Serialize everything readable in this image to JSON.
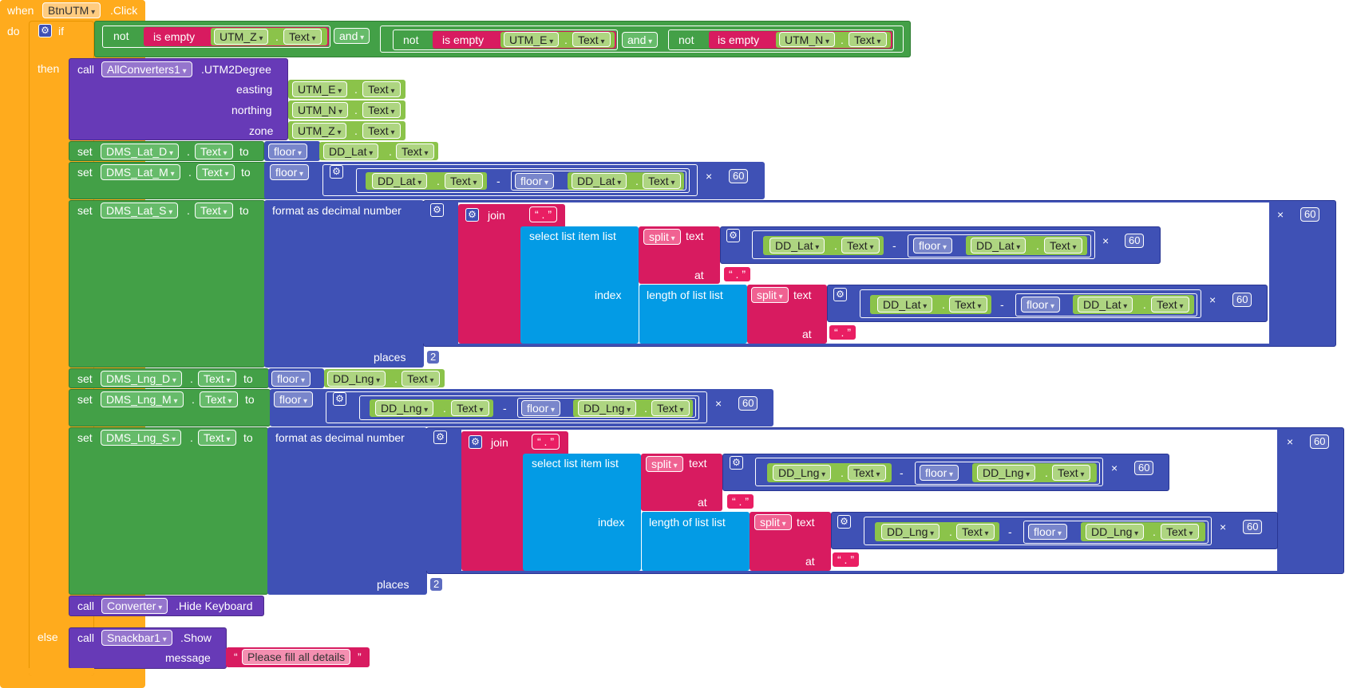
{
  "event": {
    "when": "when",
    "component": "BtnUTM",
    "event_name": ".Click",
    "do": "do"
  },
  "if_block": {
    "if": "if",
    "then": "then",
    "else": "else",
    "not": "not",
    "is_empty": "is empty",
    "and": "and",
    "utm_z": "UTM_Z",
    "utm_e": "UTM_E",
    "utm_n": "UTM_N",
    "text": "Text",
    "dot": "."
  },
  "call_converter": {
    "call": "call",
    "component": "AllConverters1",
    "method": ".UTM2Degree",
    "easting": "easting",
    "northing": "northing",
    "zone": "zone"
  },
  "set_blocks": {
    "set": "set",
    "to": "to",
    "floor": "floor",
    "minus": "-",
    "times": "×",
    "sixty": "60",
    "lat_d": "DMS_Lat_D",
    "lat_m": "DMS_Lat_M",
    "lat_s": "DMS_Lat_S",
    "lng_d": "DMS_Lng_D",
    "lng_m": "DMS_Lng_M",
    "lng_s": "DMS_Lng_S",
    "dd_lat": "DD_Lat",
    "dd_lng": "DD_Lng"
  },
  "format_block": {
    "format": "format as decimal number",
    "places": "places",
    "places_value": "2",
    "join": "join",
    "quote_dot": "“ . ”",
    "select": "select list item  list",
    "split": "split",
    "text": "text",
    "at": "at",
    "index": "index",
    "length": "length of list  list"
  },
  "hide_kb": {
    "call": "call",
    "component": "Converter",
    "method": ".Hide Keyboard"
  },
  "snackbar": {
    "call": "call",
    "component": "Snackbar1",
    "method": ".Show",
    "message": "message",
    "message_value": "Please fill all details"
  },
  "colors": {
    "event": "#ffab1d",
    "control": "#ffab1d",
    "logic": "#43a047",
    "text": "#d81b60",
    "math": "#3f51b5",
    "component": "#673ab7",
    "getter": "#8bc34a",
    "lists": "#039be5"
  },
  "icons": {
    "gear": "gear-icon",
    "dropdown": "chevron-down-icon"
  }
}
